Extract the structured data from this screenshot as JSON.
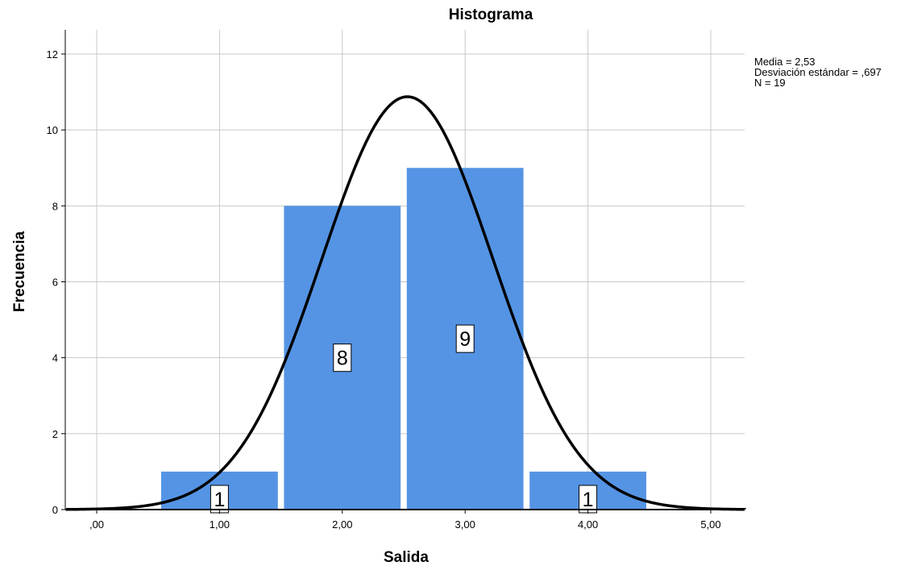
{
  "chart_data": {
    "type": "bar",
    "title": "Histograma",
    "xlabel": "Salida",
    "ylabel": "Frecuencia",
    "xlim": [
      -0.25,
      5.3
    ],
    "ylim": [
      0,
      12.6
    ],
    "bin_width": 0.95,
    "bars": [
      {
        "center": 1.0,
        "value": 1,
        "label": "1"
      },
      {
        "center": 2.0,
        "value": 8,
        "label": "8"
      },
      {
        "center": 3.0,
        "value": 9,
        "label": "9"
      },
      {
        "center": 4.0,
        "value": 1,
        "label": "1"
      }
    ],
    "x_ticks": [
      {
        "value": 0,
        "label": ",00"
      },
      {
        "value": 1,
        "label": "1,00"
      },
      {
        "value": 2,
        "label": "2,00"
      },
      {
        "value": 3,
        "label": "3,00"
      },
      {
        "value": 4,
        "label": "4,00"
      },
      {
        "value": 5,
        "label": "5,00"
      }
    ],
    "y_ticks": [
      {
        "value": 0,
        "label": "0"
      },
      {
        "value": 2,
        "label": "2"
      },
      {
        "value": 4,
        "label": "4"
      },
      {
        "value": 6,
        "label": "6"
      },
      {
        "value": 8,
        "label": "8"
      },
      {
        "value": 10,
        "label": "10"
      },
      {
        "value": 12,
        "label": "12"
      }
    ],
    "normal_curve": {
      "mean": 2.53,
      "sd": 0.697,
      "n": 19
    },
    "stats": [
      "Media = 2,53",
      "Desviación estándar = ,697",
      "N = 19"
    ],
    "grid": true,
    "colors": {
      "bar": "#5594e4",
      "curve": "#000000",
      "grid": "#c8c8c8"
    }
  }
}
